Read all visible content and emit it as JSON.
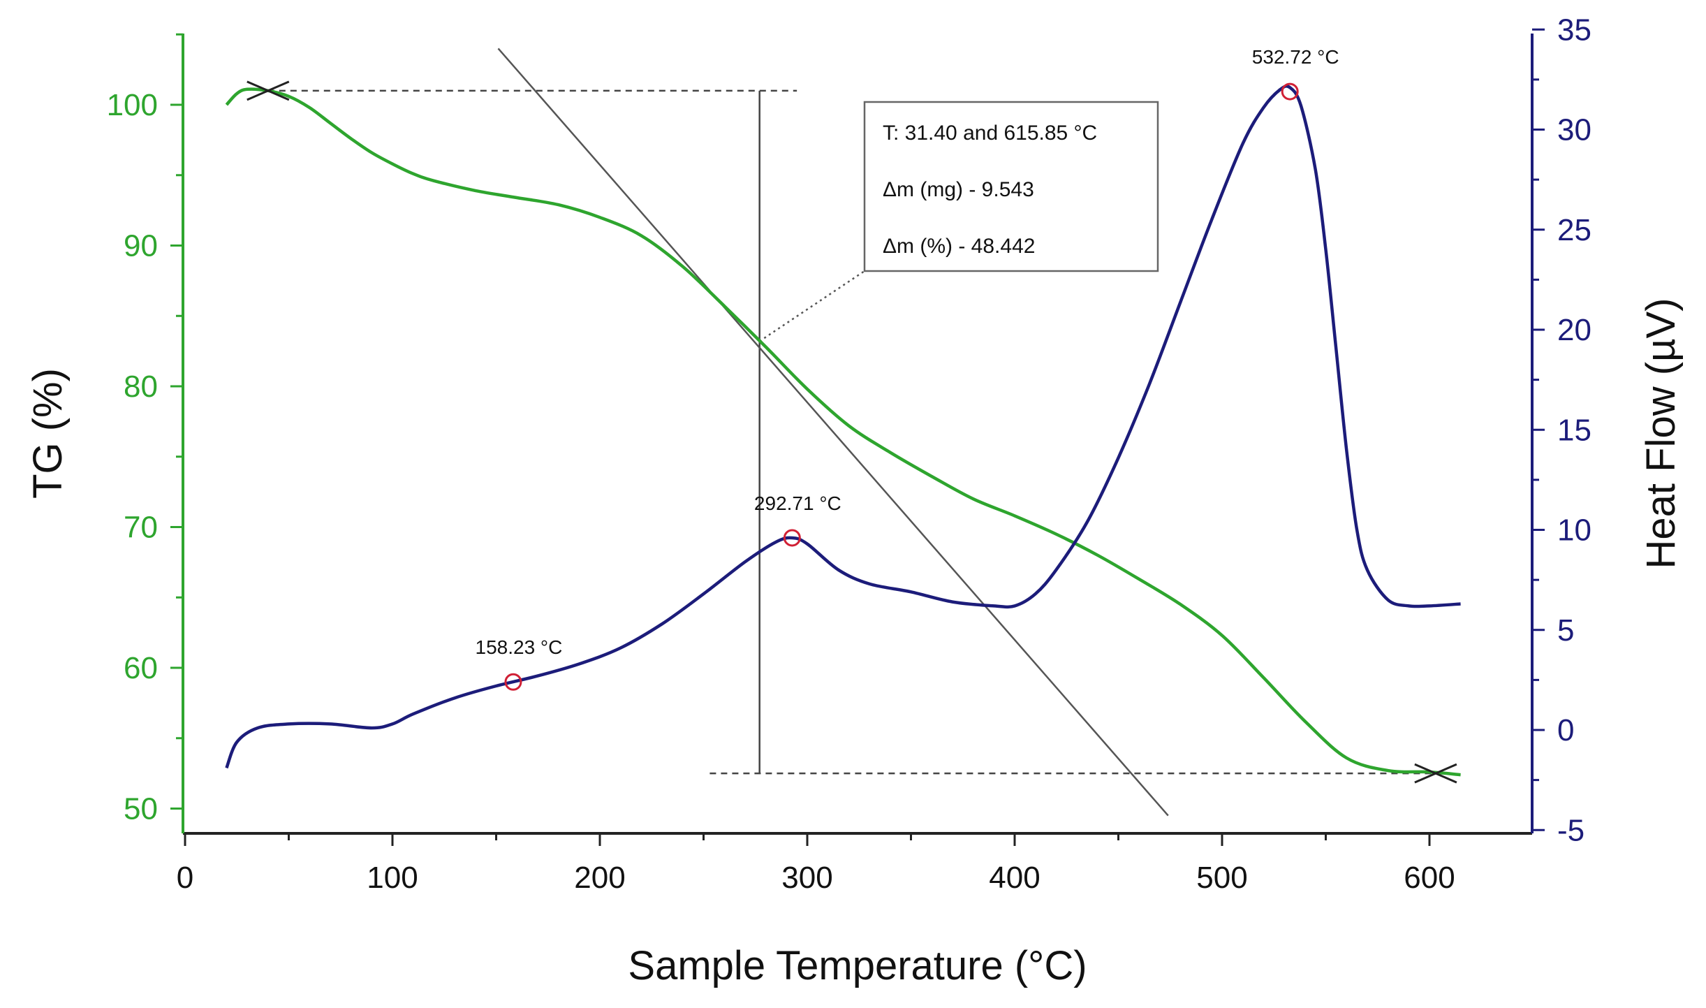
{
  "colors": {
    "tg": "#2ea52e",
    "heat": "#1c1c7a",
    "axis_bottom": "#222222",
    "peak_marker": "#d02035",
    "guide": "#444444"
  },
  "chart_data": {
    "type": "line",
    "xlabel": "Sample Temperature (°C)",
    "ylabel_left": "TG (%)",
    "ylabel_right": "Heat Flow (µV)",
    "x_ticks": [
      0,
      100,
      200,
      300,
      400,
      500,
      600
    ],
    "y_left_ticks": [
      50,
      60,
      70,
      80,
      90,
      100
    ],
    "y_right_ticks": [
      -5,
      0,
      5,
      10,
      15,
      20,
      25,
      30,
      35
    ],
    "xlim": [
      0,
      650
    ],
    "ylim_left": [
      48,
      105
    ],
    "ylim_right": [
      -5,
      35
    ],
    "series": [
      {
        "name": "TG",
        "axis": "left",
        "x": [
          20,
          25,
          30,
          40,
          50,
          60,
          70,
          80,
          90,
          100,
          110,
          120,
          140,
          160,
          180,
          200,
          220,
          240,
          260,
          280,
          300,
          320,
          340,
          360,
          380,
          400,
          420,
          440,
          460,
          480,
          500,
          520,
          540,
          560,
          580,
          600,
          615
        ],
        "y": [
          100.0,
          100.8,
          101.1,
          101.0,
          100.6,
          99.8,
          98.7,
          97.6,
          96.6,
          95.8,
          95.1,
          94.6,
          93.9,
          93.4,
          92.9,
          92.0,
          90.7,
          88.5,
          85.7,
          82.8,
          79.8,
          77.2,
          75.3,
          73.6,
          72.0,
          70.8,
          69.5,
          68.0,
          66.3,
          64.5,
          62.3,
          59.3,
          56.2,
          53.6,
          52.7,
          52.6,
          52.4
        ]
      },
      {
        "name": "Heat Flow",
        "axis": "right",
        "x": [
          20,
          25,
          35,
          50,
          70,
          90,
          100,
          110,
          130,
          150,
          170,
          190,
          210,
          230,
          250,
          270,
          285,
          292.71,
          300,
          315,
          330,
          350,
          370,
          390,
          400,
          410,
          420,
          435,
          450,
          465,
          480,
          495,
          510,
          520,
          528,
          532.72,
          538,
          545,
          550,
          555,
          560,
          565,
          570,
          580,
          590,
          600,
          615
        ],
        "y": [
          -1.9,
          -0.6,
          0.1,
          0.3,
          0.3,
          0.1,
          0.3,
          0.8,
          1.6,
          2.2,
          2.7,
          3.3,
          4.1,
          5.3,
          6.8,
          8.4,
          9.4,
          9.6,
          9.3,
          8.0,
          7.3,
          6.9,
          6.4,
          6.2,
          6.2,
          6.8,
          8.0,
          10.4,
          13.6,
          17.3,
          21.4,
          25.5,
          29.3,
          31.1,
          32.0,
          32.1,
          31.2,
          28.0,
          24.0,
          19.0,
          14.0,
          10.0,
          8.0,
          6.5,
          6.2,
          6.2,
          6.3
        ]
      }
    ],
    "peaks": [
      {
        "x": 158.23,
        "y": 2.4,
        "label": "158.23 °C"
      },
      {
        "x": 292.71,
        "y": 9.6,
        "label": "292.71 °C"
      },
      {
        "x": 532.72,
        "y": 31.9,
        "label": "532.72 °C"
      }
    ],
    "mass_loss": {
      "upper_level": 101.0,
      "lower_level": 52.5,
      "upper_from": 40,
      "upper_to": 295,
      "lower_from": 253,
      "lower_to": 603,
      "marker_x": 277,
      "tangent": {
        "x1": 151,
        "y1": 104.0,
        "x2": 474,
        "y2": 49.5
      },
      "start_x": 40,
      "end_x": 603,
      "info": {
        "temperature_range": "T: 31.40 and 615.85 °C",
        "mass_change_mg": "Δm (mg) - 9.543",
        "mass_change_pct": "Δm (%) - 48.442"
      }
    }
  }
}
